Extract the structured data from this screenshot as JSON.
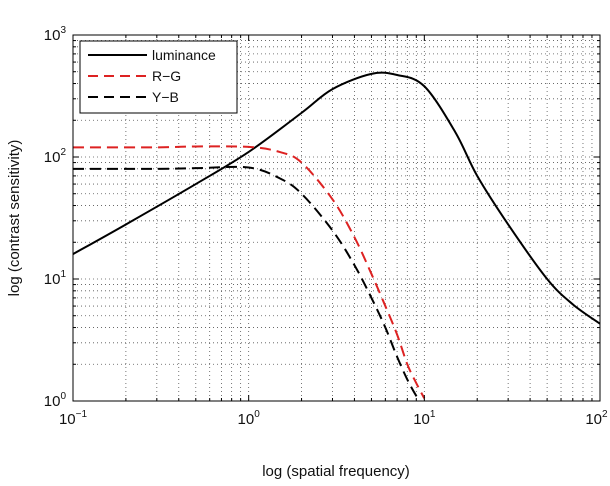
{
  "chart_data": {
    "type": "line",
    "xscale": "log",
    "yscale": "log",
    "xlim": [
      0.1,
      100
    ],
    "ylim": [
      1,
      1000
    ],
    "xlabel": "log (spatial frequency)",
    "ylabel": "log (contrast sensitivity)",
    "xticks": [
      {
        "base": "10",
        "exp": "−1"
      },
      {
        "base": "10",
        "exp": "0"
      },
      {
        "base": "10",
        "exp": "1"
      },
      {
        "base": "10",
        "exp": "2"
      }
    ],
    "yticks": [
      {
        "base": "10",
        "exp": "0"
      },
      {
        "base": "10",
        "exp": "1"
      },
      {
        "base": "10",
        "exp": "2"
      },
      {
        "base": "10",
        "exp": "3"
      }
    ],
    "grid": true,
    "legend_position": "top-left",
    "series": [
      {
        "name": "luminance",
        "color": "#000000",
        "dash": "solid",
        "x": [
          0.1,
          0.2,
          0.5,
          1,
          2,
          3,
          5,
          7,
          10,
          15,
          20,
          30,
          50,
          70,
          100
        ],
        "y": [
          16,
          28,
          60,
          110,
          230,
          360,
          480,
          470,
          380,
          160,
          70,
          28,
          10,
          6.2,
          4.3
        ]
      },
      {
        "name": "R−G",
        "color": "#dd2222",
        "dash": "dashed",
        "x": [
          0.1,
          0.3,
          0.5,
          1,
          1.5,
          2,
          3,
          4,
          5,
          6,
          7,
          8,
          9,
          10
        ],
        "y": [
          120,
          120,
          122,
          121,
          110,
          90,
          45,
          22,
          11,
          6,
          3.5,
          2,
          1.4,
          1.05
        ]
      },
      {
        "name": "Y−B",
        "color": "#000000",
        "dash": "dashed",
        "x": [
          0.1,
          0.3,
          0.5,
          1,
          1.5,
          2,
          3,
          4,
          5,
          6,
          7,
          8,
          9,
          9.5
        ],
        "y": [
          80,
          80,
          81,
          82,
          67,
          50,
          25,
          13,
          7,
          4,
          2.3,
          1.5,
          1.1,
          1.0
        ]
      }
    ]
  }
}
